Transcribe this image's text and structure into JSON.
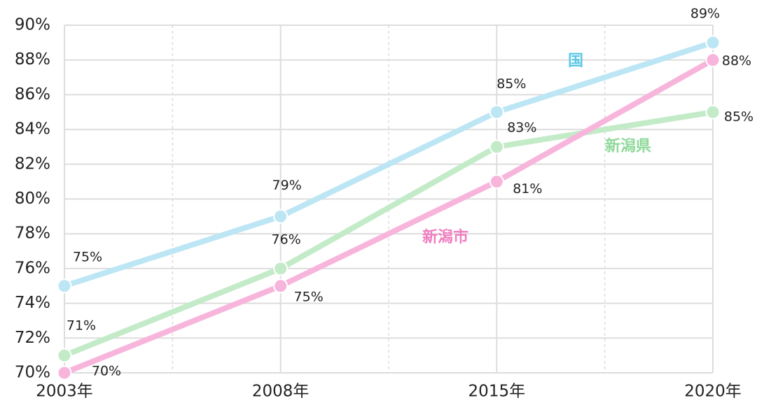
{
  "chart_data": {
    "type": "line",
    "categories": [
      "2003年",
      "2008年",
      "2015年",
      "2020年"
    ],
    "series": [
      {
        "name": "国",
        "color": "#bde6f5",
        "label_color": "#5bc8e6",
        "values": [
          75,
          79,
          85,
          89
        ],
        "value_labels": [
          "75%",
          "79%",
          "85%",
          "89%"
        ]
      },
      {
        "name": "新潟県",
        "color": "#c3ebc8",
        "label_color": "#8fd99a",
        "values": [
          71,
          76,
          83,
          85
        ],
        "value_labels": [
          "71%",
          "76%",
          "83%",
          "85%"
        ]
      },
      {
        "name": "新潟市",
        "color": "#f8b5dc",
        "label_color": "#f07ec0",
        "values": [
          70,
          75,
          81,
          88
        ],
        "value_labels": [
          "70%",
          "75%",
          "81%",
          "88%"
        ]
      }
    ],
    "ylim": [
      70,
      90
    ],
    "yticks": [
      {
        "value": 70,
        "label": "70%"
      },
      {
        "value": 72,
        "label": "72%"
      },
      {
        "value": 74,
        "label": "74%"
      },
      {
        "value": 76,
        "label": "76%"
      },
      {
        "value": 78,
        "label": "78%"
      },
      {
        "value": 80,
        "label": "80%"
      },
      {
        "value": 82,
        "label": "82%"
      },
      {
        "value": 84,
        "label": "84%"
      },
      {
        "value": 86,
        "label": "86%"
      },
      {
        "value": 88,
        "label": "88%"
      },
      {
        "value": 90,
        "label": "90%"
      }
    ],
    "grid": true
  }
}
